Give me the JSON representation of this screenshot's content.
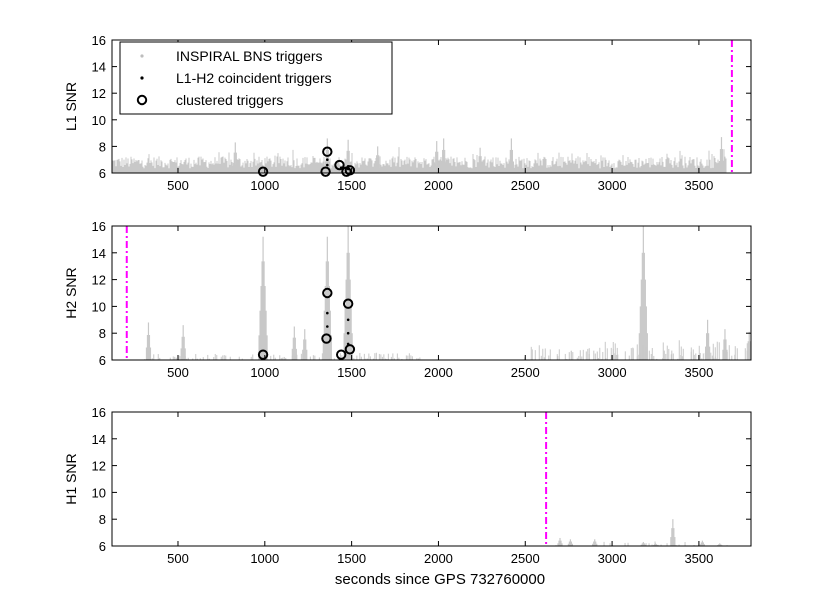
{
  "figure": {
    "xlabel": "seconds since GPS 732760000"
  },
  "legend": {
    "entries": [
      {
        "label": "INSPIRAL BNS triggers",
        "marker": "dot",
        "color": "#bdbdbd"
      },
      {
        "label": "L1-H2 coincident triggers",
        "marker": "small-dot",
        "color": "#000000"
      },
      {
        "label": "clustered triggers",
        "marker": "circle",
        "color": "#000000"
      }
    ],
    "placement": "top-left"
  },
  "colors": {
    "background_triggers": "#c8c8c8",
    "coincident_triggers": "#000000",
    "clustered_triggers": "#000000",
    "marker_line": "#ff00ff"
  },
  "chart_data": [
    {
      "type": "scatter",
      "panel": "L1",
      "ylabel": "L1 SNR",
      "xlim": [
        120,
        3800
      ],
      "ylim": [
        6,
        16
      ],
      "xticks": [
        500,
        1000,
        1500,
        2000,
        2500,
        3000,
        3500
      ],
      "yticks": [
        6,
        8,
        10,
        12,
        14,
        16
      ],
      "marker_line_x": 3690,
      "background_trigger_span": [
        120,
        3660
      ],
      "background_peaks": [
        {
          "x": 1360,
          "y": 8.6
        },
        {
          "x": 1480,
          "y": 8.5
        },
        {
          "x": 2420,
          "y": 8.6
        },
        {
          "x": 3630,
          "y": 8.7
        },
        {
          "x": 830,
          "y": 8.3
        },
        {
          "x": 1990,
          "y": 8.4
        },
        {
          "x": 1650,
          "y": 8.0
        },
        {
          "x": 2240,
          "y": 7.9
        },
        {
          "x": 2030,
          "y": 8.6
        }
      ],
      "coincident_triggers": [
        {
          "x": 1360,
          "y": 6.6
        },
        {
          "x": 1360,
          "y": 7.0
        },
        {
          "x": 1480,
          "y": 6.5
        },
        {
          "x": 1480,
          "y": 6.3
        },
        {
          "x": 1440,
          "y": 6.4
        }
      ],
      "clustered_triggers": [
        {
          "x": 990,
          "y": 6.1
        },
        {
          "x": 1350,
          "y": 6.1
        },
        {
          "x": 1360,
          "y": 7.6
        },
        {
          "x": 1430,
          "y": 6.6
        },
        {
          "x": 1470,
          "y": 6.1
        },
        {
          "x": 1490,
          "y": 6.2
        }
      ]
    },
    {
      "type": "scatter",
      "panel": "H2",
      "ylabel": "H2 SNR",
      "xlim": [
        120,
        3800
      ],
      "ylim": [
        6,
        16
      ],
      "xticks": [
        500,
        1000,
        1500,
        2000,
        2500,
        3000,
        3500
      ],
      "yticks": [
        6,
        8,
        10,
        12,
        14,
        16
      ],
      "marker_line_x": 205,
      "background_peaks": [
        {
          "x": 990,
          "y": 15.2
        },
        {
          "x": 1360,
          "y": 15.2
        },
        {
          "x": 1480,
          "y": 16.0
        },
        {
          "x": 3180,
          "y": 16.0
        },
        {
          "x": 330,
          "y": 8.8
        },
        {
          "x": 530,
          "y": 8.6
        },
        {
          "x": 1170,
          "y": 8.5
        },
        {
          "x": 1230,
          "y": 8.3
        },
        {
          "x": 3550,
          "y": 9.0
        },
        {
          "x": 3650,
          "y": 8.3
        },
        {
          "x": 3790,
          "y": 8.1
        }
      ],
      "coincident_triggers": [
        {
          "x": 1360,
          "y": 9.5
        },
        {
          "x": 1360,
          "y": 8.5
        },
        {
          "x": 1480,
          "y": 9.0
        },
        {
          "x": 1480,
          "y": 8.0
        },
        {
          "x": 1480,
          "y": 7.2
        }
      ],
      "clustered_triggers": [
        {
          "x": 990,
          "y": 6.4
        },
        {
          "x": 1355,
          "y": 7.6
        },
        {
          "x": 1360,
          "y": 11.0
        },
        {
          "x": 1440,
          "y": 6.4
        },
        {
          "x": 1480,
          "y": 10.2
        },
        {
          "x": 1490,
          "y": 6.8
        }
      ]
    },
    {
      "type": "scatter",
      "panel": "H1",
      "ylabel": "H1 SNR",
      "xlim": [
        120,
        3800
      ],
      "ylim": [
        6,
        16
      ],
      "xticks": [
        500,
        1000,
        1500,
        2000,
        2500,
        3000,
        3500
      ],
      "yticks": [
        6,
        8,
        10,
        12,
        14,
        16
      ],
      "marker_line_x": 2620,
      "background_peaks": [
        {
          "x": 2700,
          "y": 6.6
        },
        {
          "x": 2760,
          "y": 6.5
        },
        {
          "x": 2900,
          "y": 6.5
        },
        {
          "x": 3180,
          "y": 6.3
        },
        {
          "x": 3250,
          "y": 6.2
        },
        {
          "x": 3350,
          "y": 8.0
        },
        {
          "x": 3520,
          "y": 6.4
        },
        {
          "x": 3620,
          "y": 6.2
        }
      ],
      "coincident_triggers": [],
      "clustered_triggers": []
    }
  ]
}
